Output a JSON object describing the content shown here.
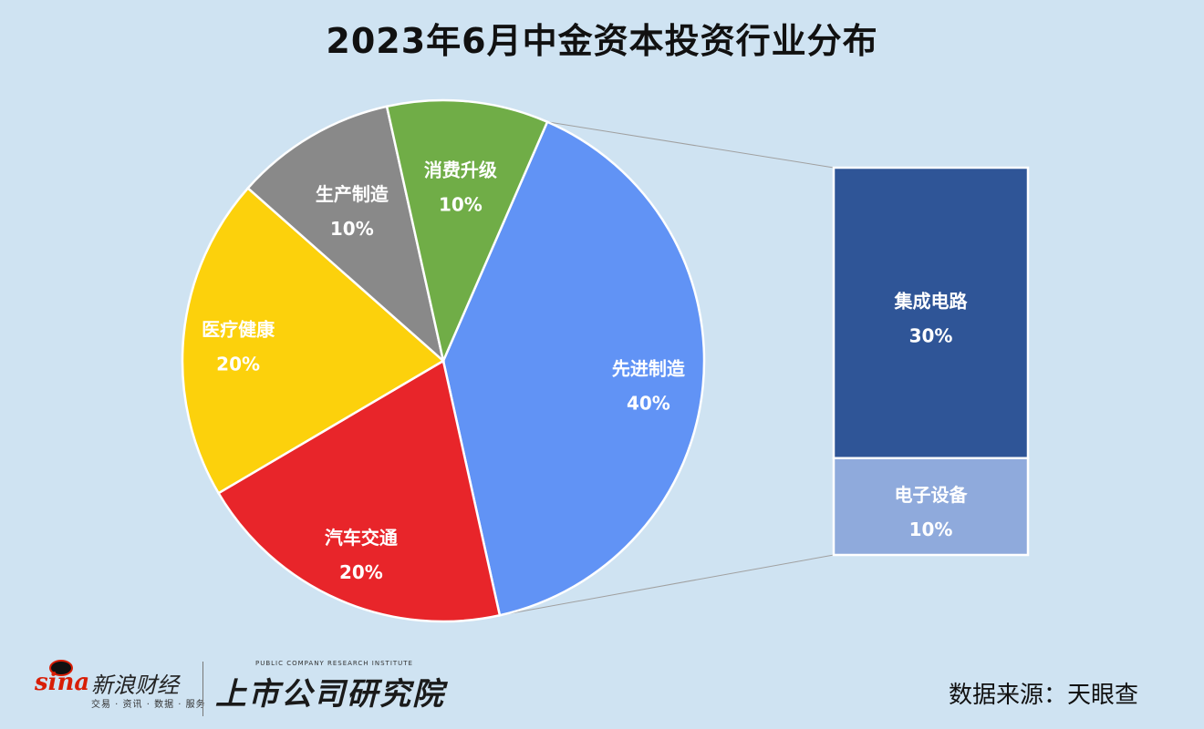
{
  "chart_data": [
    {
      "type": "pie",
      "title": "2023年6月中金资本投资行业分布",
      "slices": [
        {
          "label": "先进制造",
          "value": 40,
          "display": "40%",
          "color": "#6193f5"
        },
        {
          "label": "汽车交通",
          "value": 20,
          "display": "20%",
          "color": "#e8252a"
        },
        {
          "label": "医疗健康",
          "value": 20,
          "display": "20%",
          "color": "#fcd10c"
        },
        {
          "label": "生产制造",
          "value": 10,
          "display": "10%",
          "color": "#898989"
        },
        {
          "label": "消费升级",
          "value": 10,
          "display": "10%",
          "color": "#70ad47"
        }
      ]
    },
    {
      "type": "bar",
      "stacked": true,
      "detail_of": "先进制造",
      "segments": [
        {
          "label": "集成电路",
          "value": 30,
          "display": "30%",
          "color": "#2f5597"
        },
        {
          "label": "电子设备",
          "value": 10,
          "display": "10%",
          "color": "#8faadc"
        }
      ]
    }
  ],
  "footer": {
    "sina_mark": "sina",
    "sina_brand": "新浪财经",
    "sina_sub": "交易 · 资讯 · 数据 · 服务",
    "institute_en": "PUBLIC COMPANY RESEARCH INSTITUTE",
    "institute_cn": "上市公司研究院",
    "source": "数据来源：天眼查"
  }
}
